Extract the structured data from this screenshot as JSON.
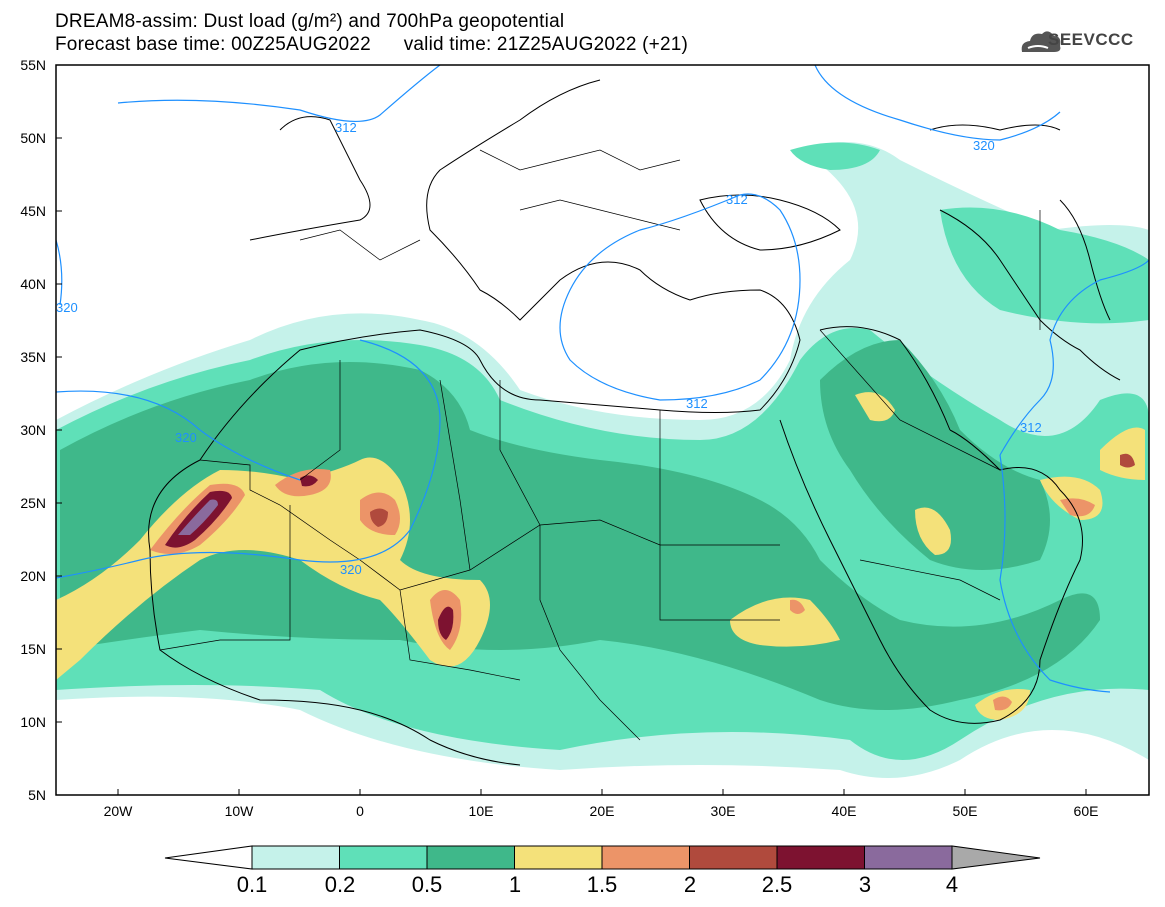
{
  "title": {
    "line1": "DREAM8-assim: Dust load (g/m²) and 700hPa geopotential",
    "line2_left": "Forecast base time: 00Z25AUG2022",
    "line2_right": "valid time: 21Z25AUG2022 (+21)"
  },
  "logo": {
    "text": "SEEVCCC",
    "icon": "cloud-icon"
  },
  "axes": {
    "lat_ticks": [
      "55N",
      "50N",
      "45N",
      "40N",
      "35N",
      "30N",
      "25N",
      "20N",
      "15N",
      "10N",
      "5N"
    ],
    "lon_ticks": [
      "20W",
      "10W",
      "0",
      "10E",
      "20E",
      "30E",
      "40E",
      "50E",
      "60E"
    ],
    "lon_range": [
      -25,
      65
    ],
    "lat_range": [
      5,
      55
    ]
  },
  "contour_labels": [
    "312",
    "320",
    "320",
    "312",
    "320",
    "320",
    "312",
    "312"
  ],
  "colorbar": {
    "levels": [
      "0.1",
      "0.2",
      "0.5",
      "1",
      "1.5",
      "2",
      "2.5",
      "3",
      "4"
    ],
    "colors": [
      "#c5f2ea",
      "#5fe0b8",
      "#3fb88a",
      "#f4e17a",
      "#ec9468",
      "#b04a3d",
      "#7d1230",
      "#8a6a9d"
    ]
  }
}
